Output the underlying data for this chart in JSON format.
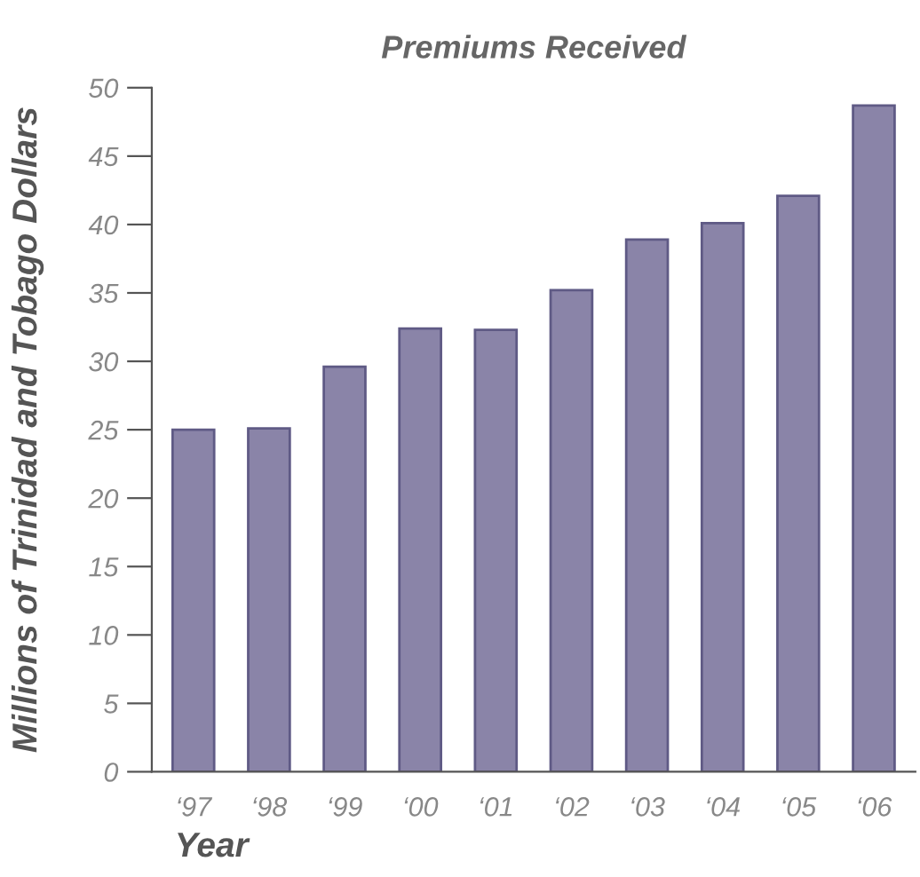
{
  "chart_data": {
    "type": "bar",
    "title": "Premiums Received",
    "xlabel": "Year",
    "ylabel": "Millions of Trinidad and Tobago Dollars",
    "categories": [
      "‘97",
      "‘98",
      "‘99",
      "‘00",
      "‘01",
      "‘02",
      "‘03",
      "‘04",
      "‘05",
      "‘06"
    ],
    "values": [
      25.0,
      25.1,
      29.6,
      32.4,
      32.3,
      35.2,
      38.9,
      40.1,
      42.1,
      48.7
    ],
    "color": "#8a84a8",
    "ylim": [
      0,
      50
    ],
    "yticks": [
      0,
      5,
      10,
      15,
      20,
      25,
      30,
      35,
      40,
      45,
      50
    ],
    "grid": false,
    "legend": false
  }
}
